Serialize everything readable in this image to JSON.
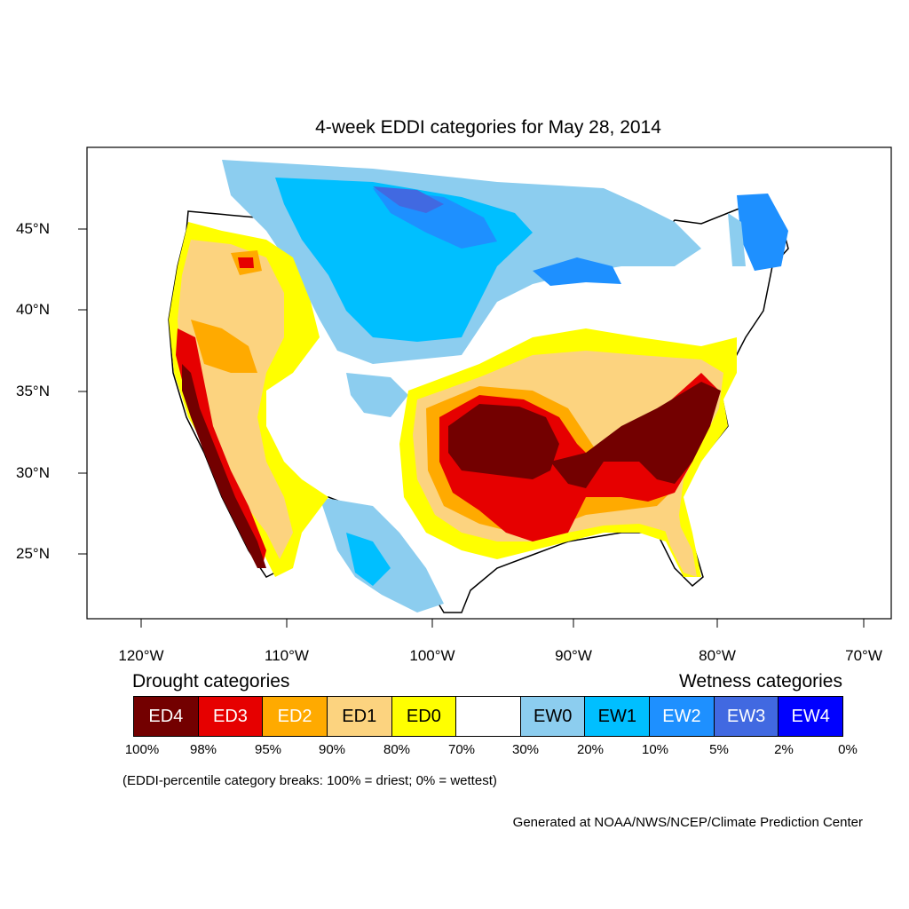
{
  "title": "4-week EDDI categories for May 28, 2014",
  "lat_ticks": [
    "45°N",
    "40°N",
    "35°N",
    "30°N",
    "25°N"
  ],
  "lon_ticks": [
    "120°W",
    "110°W",
    "100°W",
    "90°W",
    "80°W",
    "70°W"
  ],
  "legend": {
    "drought_heading": "Drought categories",
    "wetness_heading": "Wetness categories",
    "categories": [
      {
        "label": "ED4",
        "color": "#730000",
        "text_color": "#ffffff"
      },
      {
        "label": "ED3",
        "color": "#e60000",
        "text_color": "#ffffff"
      },
      {
        "label": "ED2",
        "color": "#ffaa00",
        "text_color": "#ffffff"
      },
      {
        "label": "ED1",
        "color": "#fcd37f",
        "text_color": "#000000"
      },
      {
        "label": "ED0",
        "color": "#ffff00",
        "text_color": "#000000"
      },
      {
        "label": "",
        "color": "#ffffff",
        "text_color": "#000000"
      },
      {
        "label": "EW0",
        "color": "#8ccdef",
        "text_color": "#000000"
      },
      {
        "label": "EW1",
        "color": "#00bfff",
        "text_color": "#000000"
      },
      {
        "label": "EW2",
        "color": "#1e90ff",
        "text_color": "#ffffff"
      },
      {
        "label": "EW3",
        "color": "#4169e1",
        "text_color": "#ffffff"
      },
      {
        "label": "EW4",
        "color": "#0000ff",
        "text_color": "#ffffff"
      }
    ],
    "breaks": [
      "100%",
      "98%",
      "95%",
      "90%",
      "80%",
      "70%",
      "30%",
      "20%",
      "10%",
      "5%",
      "2%",
      "0%"
    ]
  },
  "breaks_note": "(EDDI-percentile category breaks: 100% = driest; 0% = wettest)",
  "generated_note": "Generated at NOAA/NWS/NCEP/Climate Prediction Center"
}
